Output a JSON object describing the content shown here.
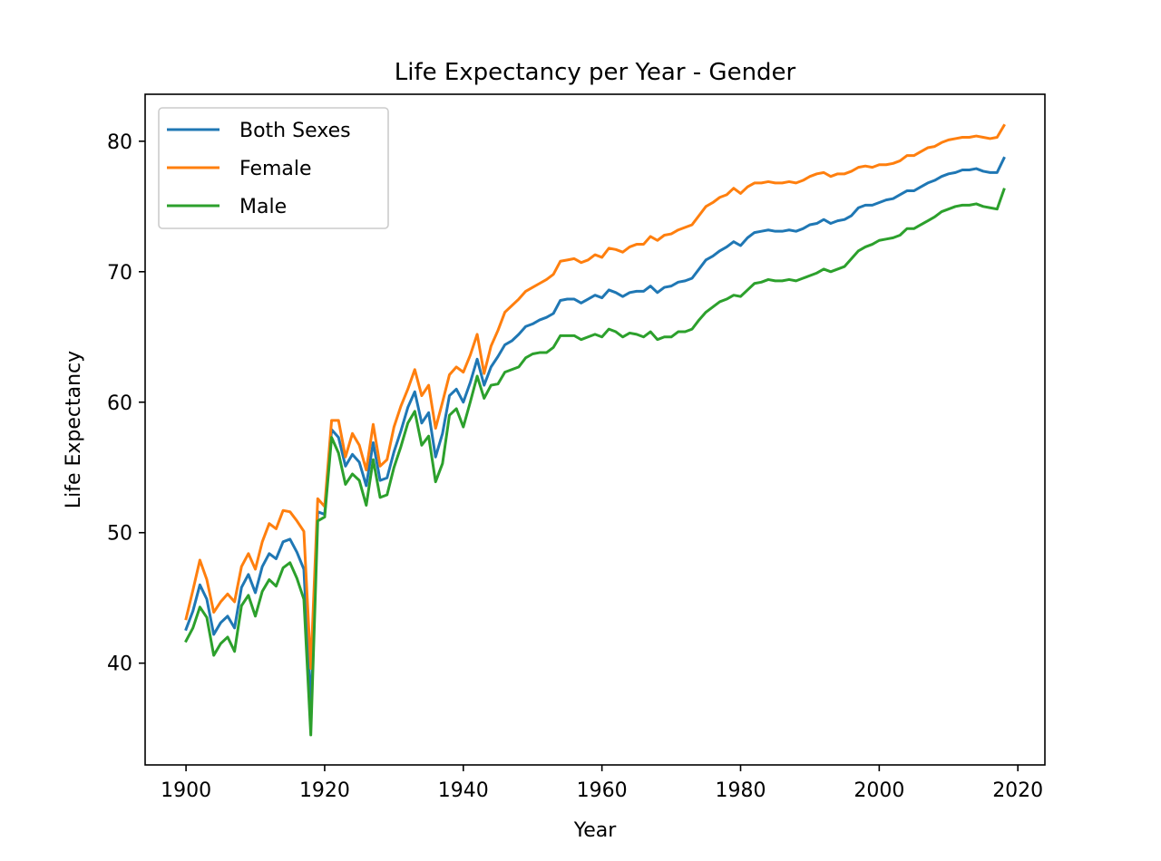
{
  "chart_data": {
    "type": "line",
    "title": "Life Expectancy per Year - Gender",
    "xlabel": "Year",
    "ylabel": "Life Expectancy",
    "xlim": [
      1894.1,
      2023.9
    ],
    "ylim": [
      32.2,
      83.6
    ],
    "xticks": [
      1900,
      1920,
      1940,
      1960,
      1980,
      2000,
      2020
    ],
    "yticks": [
      40,
      50,
      60,
      70,
      80
    ],
    "grid": false,
    "legend_position": "upper-left",
    "x_start": 1900,
    "series": [
      {
        "name": "Both Sexes",
        "color": "#1f77b4",
        "values": [
          42.6,
          44.0,
          46.0,
          44.9,
          42.2,
          43.1,
          43.6,
          42.7,
          45.8,
          46.8,
          45.4,
          47.4,
          48.4,
          48.0,
          49.3,
          49.5,
          48.5,
          47.2,
          36.6,
          51.6,
          51.4,
          57.9,
          57.3,
          55.1,
          56.0,
          55.4,
          53.6,
          56.9,
          54.0,
          54.2,
          56.2,
          57.8,
          59.6,
          60.8,
          58.4,
          59.2,
          55.8,
          57.6,
          60.5,
          61.0,
          60.0,
          61.5,
          63.3,
          61.3,
          62.7,
          63.5,
          64.4,
          64.7,
          65.2,
          65.8,
          66.0,
          66.3,
          66.5,
          66.8,
          67.8,
          67.9,
          67.9,
          67.6,
          67.9,
          68.2,
          68.0,
          68.6,
          68.4,
          68.1,
          68.4,
          68.5,
          68.5,
          68.9,
          68.4,
          68.8,
          68.9,
          69.2,
          69.3,
          69.5,
          70.2,
          70.9,
          71.2,
          71.6,
          71.9,
          72.3,
          72.0,
          72.6,
          73.0,
          73.1,
          73.2,
          73.1,
          73.1,
          73.2,
          73.1,
          73.3,
          73.6,
          73.7,
          74.0,
          73.7,
          73.9,
          74.0,
          74.3,
          74.9,
          75.1,
          75.1,
          75.3,
          75.5,
          75.6,
          75.9,
          76.2,
          76.2,
          76.5,
          76.8,
          77.0,
          77.3,
          77.5,
          77.6,
          77.8,
          77.8,
          77.9,
          77.7,
          77.6,
          77.6,
          78.7
        ]
      },
      {
        "name": "Female",
        "color": "#ff7f0e",
        "values": [
          43.4,
          45.6,
          47.9,
          46.4,
          43.9,
          44.7,
          45.3,
          44.7,
          47.4,
          48.4,
          47.2,
          49.3,
          50.7,
          50.3,
          51.7,
          51.6,
          50.9,
          50.1,
          39.6,
          52.6,
          52.0,
          58.6,
          58.6,
          55.8,
          57.6,
          56.7,
          54.8,
          58.3,
          55.1,
          55.6,
          58.1,
          59.7,
          61.0,
          62.5,
          60.5,
          61.3,
          58.0,
          60.0,
          62.1,
          62.7,
          62.3,
          63.6,
          65.2,
          62.2,
          64.3,
          65.5,
          66.9,
          67.4,
          67.9,
          68.5,
          68.8,
          69.1,
          69.4,
          69.8,
          70.8,
          70.9,
          71.0,
          70.7,
          70.9,
          71.3,
          71.1,
          71.8,
          71.7,
          71.5,
          71.9,
          72.1,
          72.1,
          72.7,
          72.4,
          72.8,
          72.9,
          73.2,
          73.4,
          73.6,
          74.3,
          75.0,
          75.3,
          75.7,
          75.9,
          76.4,
          76.0,
          76.5,
          76.8,
          76.8,
          76.9,
          76.8,
          76.8,
          76.9,
          76.8,
          77.0,
          77.3,
          77.5,
          77.6,
          77.3,
          77.5,
          77.5,
          77.7,
          78.0,
          78.1,
          78.0,
          78.2,
          78.2,
          78.3,
          78.5,
          78.9,
          78.9,
          79.2,
          79.5,
          79.6,
          79.9,
          80.1,
          80.2,
          80.3,
          80.3,
          80.4,
          80.3,
          80.2,
          80.3,
          81.2
        ]
      },
      {
        "name": "Male",
        "color": "#2ca02c",
        "values": [
          41.7,
          42.7,
          44.3,
          43.5,
          40.6,
          41.5,
          42.0,
          40.9,
          44.4,
          45.2,
          43.6,
          45.5,
          46.4,
          45.9,
          47.3,
          47.7,
          46.5,
          44.9,
          34.5,
          50.9,
          51.2,
          57.3,
          56.1,
          53.7,
          54.5,
          54.0,
          52.1,
          55.6,
          52.7,
          52.9,
          55.0,
          56.6,
          58.4,
          59.3,
          56.7,
          57.4,
          53.9,
          55.3,
          59.0,
          59.5,
          58.1,
          60.0,
          62.0,
          60.3,
          61.3,
          61.4,
          62.3,
          62.5,
          62.7,
          63.4,
          63.7,
          63.8,
          63.8,
          64.2,
          65.1,
          65.1,
          65.1,
          64.8,
          65.0,
          65.2,
          65.0,
          65.6,
          65.4,
          65.0,
          65.3,
          65.2,
          65.0,
          65.4,
          64.8,
          65.0,
          65.0,
          65.4,
          65.4,
          65.6,
          66.3,
          66.9,
          67.3,
          67.7,
          67.9,
          68.2,
          68.1,
          68.6,
          69.1,
          69.2,
          69.4,
          69.3,
          69.3,
          69.4,
          69.3,
          69.5,
          69.7,
          69.9,
          70.2,
          70.0,
          70.2,
          70.4,
          71.0,
          71.6,
          71.9,
          72.1,
          72.4,
          72.5,
          72.6,
          72.8,
          73.3,
          73.3,
          73.6,
          73.9,
          74.2,
          74.6,
          74.8,
          75.0,
          75.1,
          75.1,
          75.2,
          75.0,
          74.9,
          74.8,
          76.3
        ]
      }
    ]
  }
}
